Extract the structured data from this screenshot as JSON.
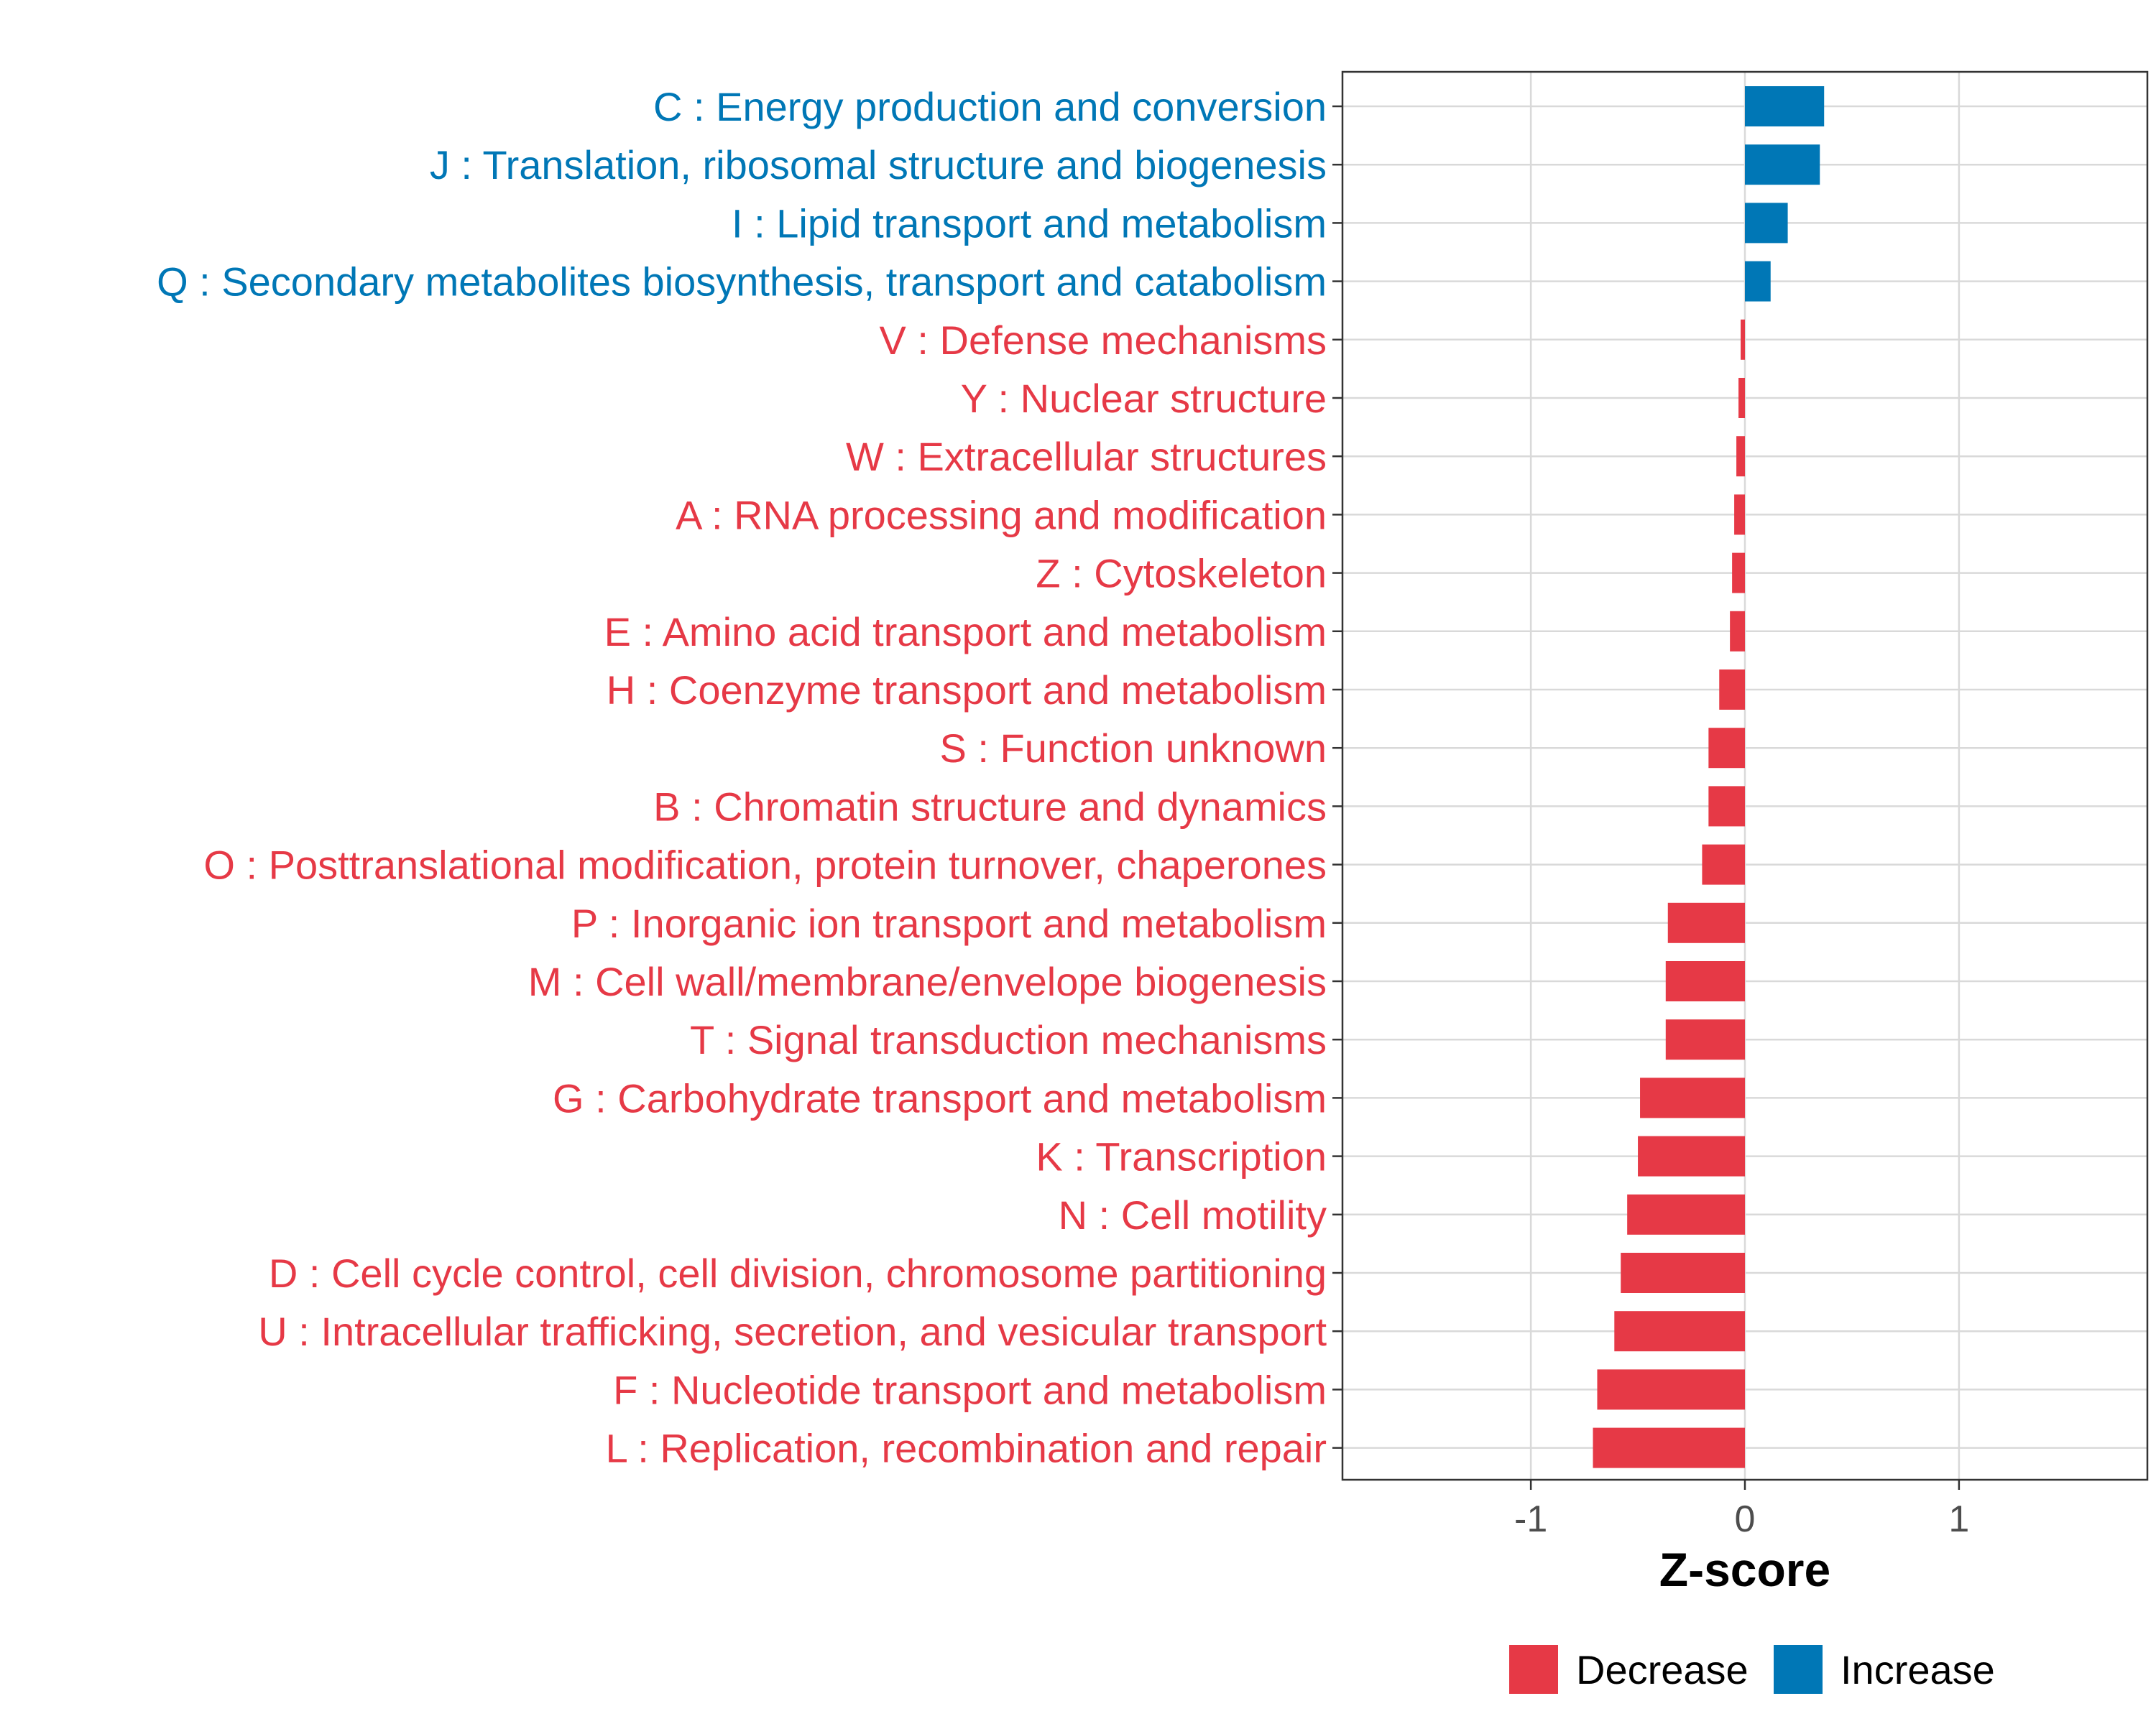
{
  "chart_data": {
    "type": "bar",
    "orientation": "horizontal",
    "categories": [
      "C : Energy production and conversion",
      "J : Translation, ribosomal structure and biogenesis",
      "I : Lipid transport and metabolism",
      "Q : Secondary metabolites biosynthesis, transport and catabolism",
      "V : Defense mechanisms",
      "Y : Nuclear structure",
      "W : Extracellular structures",
      "A : RNA processing and modification",
      "Z : Cytoskeleton",
      "E : Amino acid transport and metabolism",
      "H : Coenzyme transport and metabolism",
      "S : Function unknown",
      "B : Chromatin structure and dynamics",
      "O : Posttranslational modification, protein turnover, chaperones",
      "P : Inorganic ion transport and metabolism",
      "M : Cell wall/membrane/envelope biogenesis",
      "T : Signal transduction mechanisms",
      "G : Carbohydrate transport and metabolism",
      "K : Transcription",
      "N : Cell motility",
      "D : Cell cycle control, cell division, chromosome partitioning",
      "U : Intracellular trafficking, secretion, and vesicular transport",
      "F : Nucleotide transport and metabolism",
      "L : Replication, recombination and repair"
    ],
    "values": [
      0.37,
      0.35,
      0.2,
      0.12,
      -0.02,
      -0.03,
      -0.04,
      -0.05,
      -0.06,
      -0.07,
      -0.12,
      -0.17,
      -0.17,
      -0.2,
      -0.36,
      -0.37,
      -0.37,
      -0.49,
      -0.5,
      -0.55,
      -0.58,
      -0.61,
      -0.69,
      -0.71
    ],
    "xlabel": "Z-score",
    "ylabel": "",
    "xlim": [
      -1.88,
      1.88
    ],
    "xticks": [
      -1,
      0,
      1
    ],
    "xtick_labels": [
      "-1",
      "0",
      "1"
    ],
    "grid": true,
    "legend": {
      "position": "bottom",
      "items": [
        {
          "name": "Decrease",
          "color": "#e63946"
        },
        {
          "name": "Increase",
          "color": "#0077b6"
        }
      ]
    },
    "colors": {
      "decrease": "#e63946",
      "increase": "#0077b6"
    }
  }
}
